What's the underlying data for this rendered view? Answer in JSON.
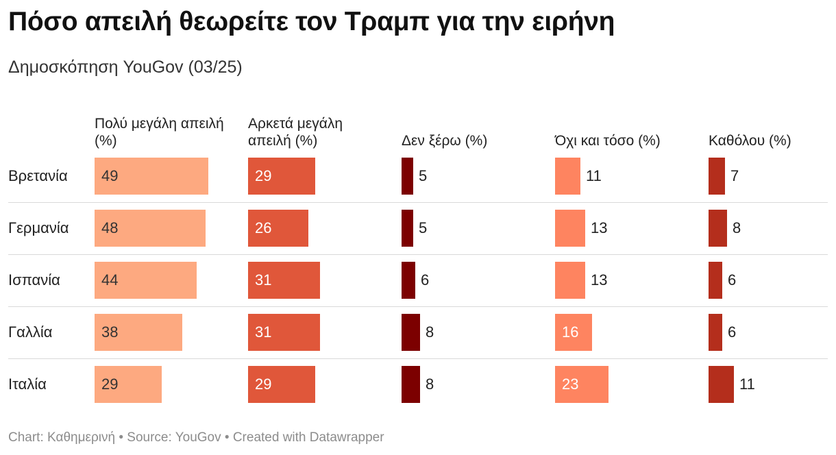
{
  "title": "Πόσο απειλή θεωρείτε τον Τραμπ για την ειρήνη",
  "subtitle": "Δημοσκόπηση YouGov (03/25)",
  "footer": "Chart: Καθημερινή • Source: YouGov • Created with Datawrapper",
  "chart_data": {
    "type": "bar",
    "layout": "split-bars",
    "categories": [
      "Βρετανία",
      "Γερμανία",
      "Ισπανία",
      "Γαλλία",
      "Ιταλία"
    ],
    "series": [
      {
        "name": "Πολύ μεγάλη απειλή (%)",
        "color": "#fda980",
        "values": [
          49,
          48,
          44,
          38,
          29
        ]
      },
      {
        "name": "Αρκετά μεγάλη απειλή (%)",
        "color": "#e0573a",
        "values": [
          29,
          26,
          31,
          31,
          29
        ]
      },
      {
        "name": "Δεν ξέρω (%)",
        "color": "#7c0000",
        "values": [
          5,
          5,
          6,
          8,
          8
        ]
      },
      {
        "name": "Όχι και τόσο (%)",
        "color": "#fe8460",
        "values": [
          11,
          13,
          13,
          16,
          23
        ]
      },
      {
        "name": "Καθόλου (%)",
        "color": "#b42e1c",
        "values": [
          7,
          8,
          6,
          6,
          11
        ]
      }
    ]
  }
}
